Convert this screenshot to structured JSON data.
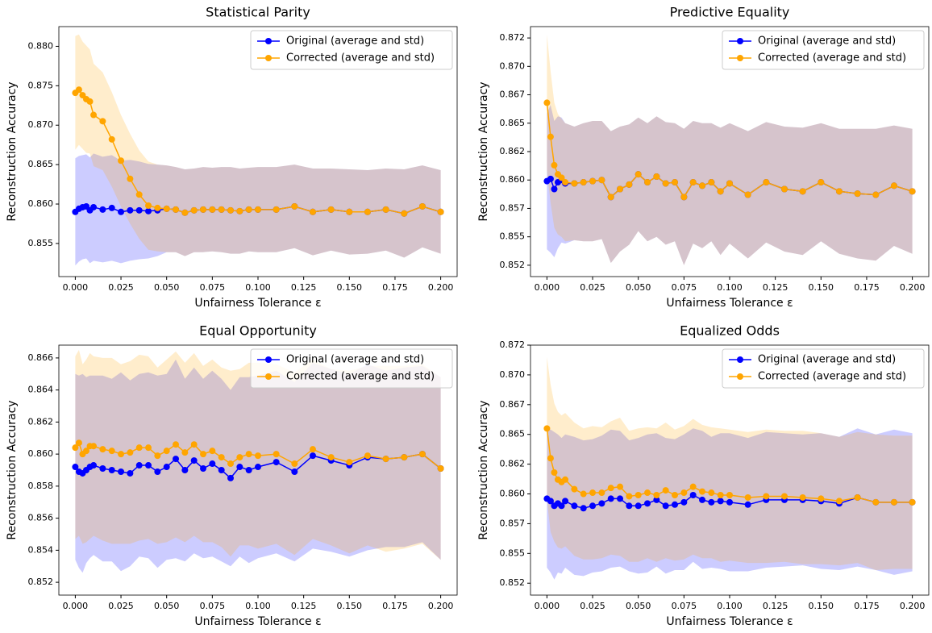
{
  "chart_data": [
    {
      "type": "line",
      "title": "Statistical Parity",
      "xlabel": "Unfairness Tolerance ε",
      "ylabel": "Reconstruction Accuracy",
      "legend": "upper right",
      "x": [
        0,
        0.002,
        0.004,
        0.006,
        0.008,
        0.01,
        0.015,
        0.02,
        0.025,
        0.03,
        0.035,
        0.04,
        0.045,
        0.05,
        0.055,
        0.06,
        0.065,
        0.07,
        0.075,
        0.08,
        0.085,
        0.09,
        0.095,
        0.1,
        0.11,
        0.12,
        0.13,
        0.14,
        0.15,
        0.16,
        0.17,
        0.18,
        0.19,
        0.2
      ],
      "xlim": [
        -0.009,
        0.209
      ],
      "xticks": [
        {
          "value": 0,
          "label": "0.000"
        },
        0.025,
        {
          "value": 0.05,
          "label": "0.050"
        },
        0.075,
        {
          "value": 0.1,
          "label": "0.100"
        },
        0.125,
        {
          "value": 0.15,
          "label": "0.150"
        },
        0.175,
        {
          "value": 0.2,
          "label": "0.200"
        }
      ],
      "ylim": [
        0.8508,
        0.8825
      ],
      "yticks": [
        0.855,
        {
          "value": 0.86,
          "label": "0.860"
        },
        0.865,
        {
          "value": 0.87,
          "label": "0.870"
        },
        0.875,
        {
          "value": 0.88,
          "label": "0.880"
        }
      ],
      "series": [
        {
          "name": "Original (average and std)",
          "color": "#0000ff",
          "values": [
            0.859,
            0.8594,
            0.8596,
            0.8597,
            0.8592,
            0.8596,
            0.8593,
            0.8595,
            0.859,
            0.8592,
            0.8592,
            0.8591,
            0.8592,
            0.8594,
            0.8593,
            0.8589,
            0.8592,
            0.8593,
            0.8593,
            0.8593,
            0.8592,
            0.8591,
            0.8593,
            0.8593,
            0.8593,
            0.8597,
            0.859,
            0.8593,
            0.859,
            0.859,
            0.8593,
            0.8588,
            0.8597,
            0.859
          ],
          "std": [
            0.0068,
            0.0067,
            0.0066,
            0.0066,
            0.0067,
            0.0068,
            0.0067,
            0.0067,
            0.0065,
            0.0064,
            0.0062,
            0.006,
            0.0058,
            0.0055,
            0.0054,
            0.0055,
            0.0053,
            0.0054,
            0.0053,
            0.0054,
            0.0055,
            0.0054,
            0.0053,
            0.0054,
            0.0054,
            0.0053,
            0.0055,
            0.0052,
            0.0054,
            0.0053,
            0.0052,
            0.0056,
            0.0052,
            0.0053
          ]
        },
        {
          "name": "Corrected (average and std)",
          "color": "#ffa500",
          "values": [
            0.8741,
            0.8745,
            0.8738,
            0.8733,
            0.873,
            0.8713,
            0.8705,
            0.8682,
            0.8655,
            0.8632,
            0.8612,
            0.8598,
            0.8595,
            0.8594,
            0.8593,
            0.8589,
            0.8592,
            0.8593,
            0.8593,
            0.8593,
            0.8592,
            0.8591,
            0.8593,
            0.8593,
            0.8593,
            0.8597,
            0.859,
            0.8593,
            0.859,
            0.859,
            0.8593,
            0.8588,
            0.8597,
            0.859
          ],
          "std": [
            0.0072,
            0.007,
            0.0068,
            0.0068,
            0.0066,
            0.0065,
            0.0062,
            0.006,
            0.0058,
            0.0057,
            0.0056,
            0.0056,
            0.0055,
            0.0055,
            0.0054,
            0.0055,
            0.0053,
            0.0054,
            0.0053,
            0.0054,
            0.0055,
            0.0054,
            0.0053,
            0.0054,
            0.0054,
            0.0053,
            0.0055,
            0.0052,
            0.0054,
            0.0053,
            0.0052,
            0.0056,
            0.0052,
            0.0053
          ]
        }
      ]
    },
    {
      "type": "line",
      "title": "Predictive Equality",
      "xlabel": "Unfairness Tolerance ε",
      "ylabel": "Reconstruction Accuracy",
      "legend": "upper right",
      "x": [
        0,
        0.002,
        0.004,
        0.006,
        0.008,
        0.01,
        0.015,
        0.02,
        0.025,
        0.03,
        0.035,
        0.04,
        0.045,
        0.05,
        0.055,
        0.06,
        0.065,
        0.07,
        0.075,
        0.08,
        0.085,
        0.09,
        0.095,
        0.1,
        0.11,
        0.12,
        0.13,
        0.14,
        0.15,
        0.16,
        0.17,
        0.18,
        0.19,
        0.2
      ],
      "xlim": [
        -0.009,
        0.209
      ],
      "xticks": [
        {
          "value": 0,
          "label": "0.000"
        },
        0.025,
        {
          "value": 0.05,
          "label": "0.050"
        },
        0.075,
        {
          "value": 0.1,
          "label": "0.100"
        },
        0.125,
        {
          "value": 0.15,
          "label": "0.150"
        },
        0.175,
        {
          "value": 0.2,
          "label": "0.200"
        }
      ],
      "ylim": [
        0.8515,
        0.8735
      ],
      "yticks": [
        {
          "value": 0.8525,
          "label": "0.852"
        },
        0.855,
        {
          "value": 0.8575,
          "label": "0.857"
        },
        {
          "value": 0.86,
          "label": "0.860"
        },
        {
          "value": 0.8625,
          "label": "0.862"
        },
        0.865,
        {
          "value": 0.8675,
          "label": "0.867"
        },
        {
          "value": 0.87,
          "label": "0.870"
        },
        {
          "value": 0.8725,
          "label": "0.872"
        }
      ],
      "series": [
        {
          "name": "Original (average and std)",
          "color": "#0000ff",
          "values": [
            0.8599,
            0.8601,
            0.8592,
            0.8598,
            0.86,
            0.8597,
            0.8597,
            0.8598,
            0.8599,
            0.86,
            0.8585,
            0.8592,
            0.8596,
            0.8605,
            0.8598,
            0.8603,
            0.8597,
            0.8598,
            0.8585,
            0.8598,
            0.8595,
            0.8598,
            0.859,
            0.8597,
            0.8587,
            0.8598,
            0.8592,
            0.859,
            0.8598,
            0.859,
            0.8588,
            0.8587,
            0.8595,
            0.859
          ],
          "std": [
            0.006,
            0.0065,
            0.006,
            0.0058,
            0.0055,
            0.0053,
            0.005,
            0.0052,
            0.0053,
            0.0052,
            0.0058,
            0.0055,
            0.0053,
            0.005,
            0.0052,
            0.0053,
            0.0054,
            0.0052,
            0.006,
            0.0054,
            0.0055,
            0.0052,
            0.0056,
            0.0053,
            0.0056,
            0.0053,
            0.0055,
            0.0056,
            0.0052,
            0.0055,
            0.0057,
            0.0058,
            0.0053,
            0.0055
          ]
        },
        {
          "name": "Corrected (average and std)",
          "color": "#ffa500",
          "values": [
            0.8668,
            0.8638,
            0.8613,
            0.8605,
            0.8602,
            0.8598,
            0.8597,
            0.8598,
            0.8599,
            0.86,
            0.8585,
            0.8592,
            0.8596,
            0.8605,
            0.8598,
            0.8603,
            0.8597,
            0.8598,
            0.8585,
            0.8598,
            0.8595,
            0.8598,
            0.859,
            0.8597,
            0.8587,
            0.8598,
            0.8592,
            0.859,
            0.8598,
            0.859,
            0.8588,
            0.8587,
            0.8595,
            0.859
          ],
          "std": [
            0.006,
            0.0058,
            0.0055,
            0.0053,
            0.0052,
            0.0052,
            0.005,
            0.0052,
            0.0053,
            0.0052,
            0.0058,
            0.0055,
            0.0053,
            0.005,
            0.0052,
            0.0053,
            0.0054,
            0.0052,
            0.006,
            0.0054,
            0.0055,
            0.0052,
            0.0056,
            0.0053,
            0.0056,
            0.0053,
            0.0055,
            0.0056,
            0.0052,
            0.0055,
            0.0057,
            0.0058,
            0.0053,
            0.0055
          ]
        }
      ]
    },
    {
      "type": "line",
      "title": "Equal Opportunity",
      "xlabel": "Unfairness Tolerance ε",
      "ylabel": "Reconstruction Accuracy",
      "legend": "upper right",
      "x": [
        0,
        0.002,
        0.004,
        0.006,
        0.008,
        0.01,
        0.015,
        0.02,
        0.025,
        0.03,
        0.035,
        0.04,
        0.045,
        0.05,
        0.055,
        0.06,
        0.065,
        0.07,
        0.075,
        0.08,
        0.085,
        0.09,
        0.095,
        0.1,
        0.11,
        0.12,
        0.13,
        0.14,
        0.15,
        0.16,
        0.17,
        0.18,
        0.19,
        0.2
      ],
      "xlim": [
        -0.009,
        0.209
      ],
      "xticks": [
        {
          "value": 0,
          "label": "0.000"
        },
        0.025,
        {
          "value": 0.05,
          "label": "0.050"
        },
        0.075,
        {
          "value": 0.1,
          "label": "0.100"
        },
        0.125,
        {
          "value": 0.15,
          "label": "0.150"
        },
        0.175,
        {
          "value": 0.2,
          "label": "0.200"
        }
      ],
      "ylim": [
        0.8512,
        0.8668
      ],
      "yticks": [
        0.852,
        0.854,
        0.856,
        0.858,
        {
          "value": 0.86,
          "label": "0.860"
        },
        0.862,
        0.864,
        0.866
      ],
      "series": [
        {
          "name": "Original (average and std)",
          "color": "#0000ff",
          "values": [
            0.8592,
            0.8589,
            0.8588,
            0.859,
            0.8592,
            0.8593,
            0.8591,
            0.859,
            0.8589,
            0.8588,
            0.8593,
            0.8593,
            0.8589,
            0.8592,
            0.8597,
            0.859,
            0.8596,
            0.8591,
            0.8594,
            0.859,
            0.8585,
            0.8592,
            0.859,
            0.8592,
            0.8595,
            0.8589,
            0.8599,
            0.8596,
            0.8593,
            0.8598,
            0.8597,
            0.8598,
            0.86,
            0.8591
          ],
          "std": [
            0.0058,
            0.006,
            0.0062,
            0.0058,
            0.0057,
            0.0056,
            0.0058,
            0.0057,
            0.0062,
            0.0058,
            0.0057,
            0.0058,
            0.006,
            0.0058,
            0.0062,
            0.0057,
            0.0058,
            0.0056,
            0.0058,
            0.0057,
            0.0055,
            0.0056,
            0.0058,
            0.0057,
            0.0057,
            0.0056,
            0.0058,
            0.0057,
            0.0057,
            0.0058,
            0.0055,
            0.0056,
            0.0055,
            0.0057
          ]
        },
        {
          "name": "Corrected (average and std)",
          "color": "#ffa500",
          "values": [
            0.8604,
            0.8607,
            0.86,
            0.8602,
            0.8605,
            0.8605,
            0.8603,
            0.8602,
            0.86,
            0.8601,
            0.8604,
            0.8604,
            0.8599,
            0.8602,
            0.8606,
            0.8601,
            0.8606,
            0.86,
            0.8602,
            0.8598,
            0.8594,
            0.8598,
            0.86,
            0.8599,
            0.86,
            0.8594,
            0.8603,
            0.8598,
            0.8595,
            0.8599,
            0.8597,
            0.8598,
            0.86,
            0.8591
          ],
          "std": [
            0.0057,
            0.0058,
            0.0056,
            0.0057,
            0.0058,
            0.0056,
            0.0057,
            0.0058,
            0.0056,
            0.0057,
            0.0058,
            0.0057,
            0.0055,
            0.0057,
            0.0058,
            0.0056,
            0.0057,
            0.0055,
            0.0057,
            0.0056,
            0.0058,
            0.0055,
            0.0057,
            0.0058,
            0.0056,
            0.0057,
            0.0056,
            0.0055,
            0.0057,
            0.0056,
            0.0058,
            0.0057,
            0.0056,
            0.0057
          ]
        }
      ]
    },
    {
      "type": "line",
      "title": "Equalized Odds",
      "xlabel": "Unfairness Tolerance ε",
      "ylabel": "Reconstruction Accuracy",
      "legend": "upper right",
      "x": [
        0,
        0.002,
        0.004,
        0.006,
        0.008,
        0.01,
        0.015,
        0.02,
        0.025,
        0.03,
        0.035,
        0.04,
        0.045,
        0.05,
        0.055,
        0.06,
        0.065,
        0.07,
        0.075,
        0.08,
        0.085,
        0.09,
        0.095,
        0.1,
        0.11,
        0.12,
        0.13,
        0.14,
        0.15,
        0.16,
        0.17,
        0.18,
        0.19,
        0.2
      ],
      "xlim": [
        -0.009,
        0.209
      ],
      "xticks": [
        {
          "value": 0,
          "label": "0.000"
        },
        0.025,
        {
          "value": 0.05,
          "label": "0.050"
        },
        0.075,
        {
          "value": 0.1,
          "label": "0.100"
        },
        0.125,
        {
          "value": 0.15,
          "label": "0.150"
        },
        0.175,
        {
          "value": 0.2,
          "label": "0.200"
        }
      ],
      "ylim": [
        0.8515,
        0.8725
      ],
      "yticks": [
        {
          "value": 0.8525,
          "label": "0.852"
        },
        0.855,
        {
          "value": 0.8575,
          "label": "0.857"
        },
        {
          "value": 0.86,
          "label": "0.860"
        },
        {
          "value": 0.8625,
          "label": "0.862"
        },
        0.865,
        {
          "value": 0.8675,
          "label": "0.867"
        },
        {
          "value": 0.87,
          "label": "0.870"
        },
        {
          "value": 0.8725,
          "label": "0.872"
        }
      ],
      "series": [
        {
          "name": "Original (average and std)",
          "color": "#0000ff",
          "values": [
            0.8596,
            0.8594,
            0.859,
            0.8592,
            0.859,
            0.8594,
            0.859,
            0.8588,
            0.859,
            0.8592,
            0.8596,
            0.8596,
            0.859,
            0.859,
            0.8592,
            0.8595,
            0.859,
            0.8591,
            0.8593,
            0.8599,
            0.8595,
            0.8593,
            0.8594,
            0.8593,
            0.8591,
            0.8595,
            0.8595,
            0.8595,
            0.8594,
            0.8592,
            0.8597,
            0.8593,
            0.8593,
            0.8593
          ],
          "std": [
            0.0058,
            0.006,
            0.0062,
            0.0058,
            0.0057,
            0.0056,
            0.0058,
            0.0057,
            0.0056,
            0.0057,
            0.0058,
            0.0057,
            0.0055,
            0.0057,
            0.0058,
            0.0056,
            0.0057,
            0.0055,
            0.0057,
            0.0056,
            0.0058,
            0.0055,
            0.0057,
            0.0058,
            0.0056,
            0.0057,
            0.0056,
            0.0055,
            0.0057,
            0.0056,
            0.0058,
            0.0057,
            0.0061,
            0.0058
          ]
        },
        {
          "name": "Corrected (average and std)",
          "color": "#ffa500",
          "values": [
            0.8655,
            0.863,
            0.8618,
            0.8612,
            0.861,
            0.8612,
            0.8604,
            0.86,
            0.8601,
            0.8601,
            0.8605,
            0.8606,
            0.8598,
            0.8599,
            0.8601,
            0.8599,
            0.8603,
            0.8599,
            0.8601,
            0.8606,
            0.8602,
            0.8601,
            0.8599,
            0.8599,
            0.8597,
            0.8598,
            0.8598,
            0.8597,
            0.8596,
            0.8594,
            0.8597,
            0.8593,
            0.8593,
            0.8593
          ],
          "std": [
            0.006,
            0.0062,
            0.0058,
            0.0057,
            0.0056,
            0.0056,
            0.0056,
            0.0055,
            0.0056,
            0.0055,
            0.0056,
            0.0058,
            0.0055,
            0.0056,
            0.0055,
            0.0056,
            0.0057,
            0.0055,
            0.0056,
            0.0057,
            0.0056,
            0.0055,
            0.0056,
            0.0055,
            0.0055,
            0.0056,
            0.0055,
            0.0056,
            0.0055,
            0.0054,
            0.0055,
            0.0057,
            0.0056,
            0.0056
          ]
        }
      ]
    }
  ]
}
